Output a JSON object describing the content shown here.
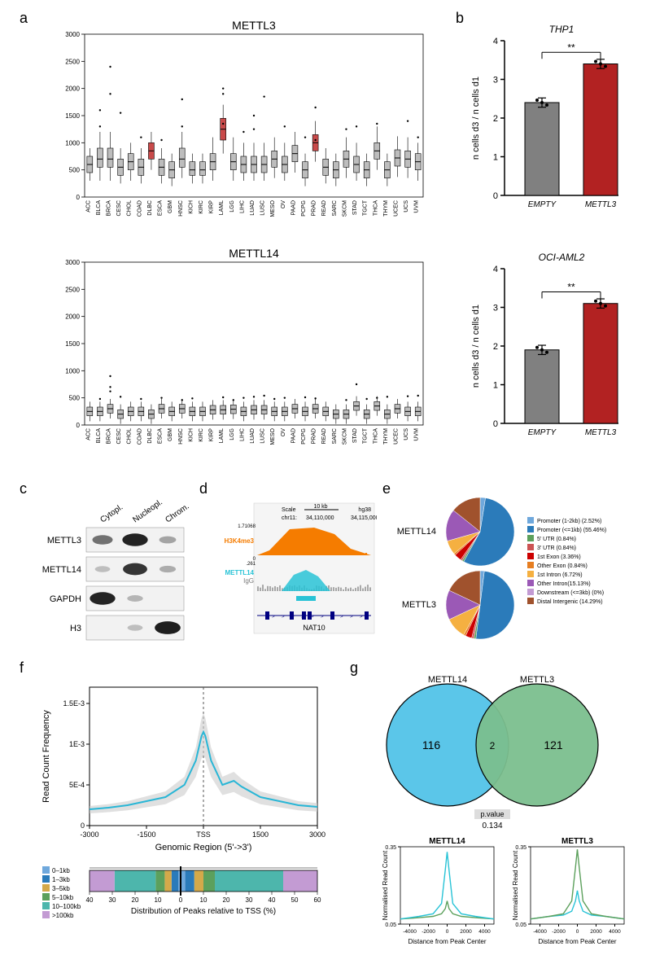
{
  "panel_labels": {
    "a": "a",
    "b": "b",
    "c": "c",
    "d": "d",
    "e": "e",
    "f": "f",
    "g": "g"
  },
  "panel_a": {
    "titles": [
      "METTL3",
      "METTL14"
    ],
    "categories": [
      "ACC",
      "BLCA",
      "BRCA",
      "CESC",
      "CHOL",
      "COAD",
      "DLBC",
      "ESCA",
      "GBM",
      "HNSC",
      "KICH",
      "KIRC",
      "KIRP",
      "LAML",
      "LGG",
      "LIHC",
      "LUAD",
      "LUSC",
      "MESO",
      "OV",
      "PAAD",
      "PCPG",
      "PRAD",
      "READ",
      "SARC",
      "SKCM",
      "STAD",
      "TGCT",
      "THCA",
      "THYM",
      "UCEC",
      "UCS",
      "UVM"
    ],
    "highlight_idx": [
      6,
      13,
      22
    ],
    "ylim": [
      0,
      3000
    ],
    "ytick_step": 500,
    "box_color": "#bdbdbd",
    "box_border": "#000000",
    "highlight_color": "#c94a4a",
    "mettl3_medians": [
      600,
      700,
      700,
      550,
      650,
      550,
      850,
      550,
      500,
      700,
      500,
      500,
      650,
      1250,
      650,
      600,
      600,
      600,
      700,
      600,
      800,
      500,
      1000,
      550,
      500,
      700,
      600,
      500,
      850,
      500,
      720,
      700,
      650
    ],
    "mettl3_q1": [
      450,
      550,
      550,
      400,
      500,
      400,
      700,
      400,
      350,
      550,
      400,
      400,
      500,
      1050,
      500,
      450,
      450,
      450,
      550,
      450,
      650,
      350,
      850,
      400,
      350,
      550,
      450,
      350,
      700,
      350,
      570,
      550,
      500
    ],
    "mettl3_q3": [
      750,
      900,
      900,
      700,
      800,
      700,
      1000,
      700,
      650,
      900,
      650,
      650,
      800,
      1450,
      800,
      750,
      750,
      750,
      850,
      750,
      950,
      650,
      1150,
      700,
      650,
      850,
      750,
      650,
      1000,
      650,
      870,
      850,
      800
    ],
    "mettl3_lw": [
      300,
      300,
      300,
      250,
      300,
      250,
      500,
      250,
      200,
      350,
      250,
      250,
      300,
      800,
      300,
      300,
      300,
      300,
      350,
      300,
      450,
      200,
      650,
      250,
      200,
      350,
      300,
      200,
      500,
      200,
      370,
      350,
      300
    ],
    "mettl3_uw": [
      900,
      1200,
      1200,
      900,
      1000,
      900,
      1200,
      900,
      800,
      1200,
      800,
      800,
      1100,
      1700,
      1100,
      1000,
      1000,
      1000,
      1100,
      1000,
      1200,
      800,
      1400,
      900,
      800,
      1100,
      1000,
      800,
      1300,
      800,
      1120,
      1100,
      1000
    ],
    "mettl14_medians": [
      250,
      250,
      300,
      200,
      250,
      250,
      200,
      300,
      250,
      300,
      250,
      250,
      280,
      280,
      290,
      250,
      280,
      280,
      250,
      250,
      300,
      250,
      300,
      250,
      200,
      200,
      350,
      200,
      350,
      200,
      300,
      250,
      250
    ],
    "outliers3_y": [
      1300,
      1600,
      1900,
      2400,
      1550,
      1100,
      1050,
      1300,
      1800,
      1900,
      1350,
      1200,
      1250,
      1500,
      1850,
      2000,
      1300,
      1100,
      1050,
      1650,
      1250,
      1300,
      1350,
      1400,
      1100
    ],
    "outliers3_x": [
      1,
      1,
      2,
      2,
      3,
      5,
      7,
      9,
      9,
      13,
      13,
      15,
      16,
      16,
      17,
      13,
      19,
      21,
      22,
      22,
      25,
      26,
      28,
      31,
      32
    ],
    "outliers14_y": [
      480,
      620,
      700,
      900,
      520,
      480,
      500,
      460,
      490,
      510,
      460,
      500,
      520,
      540,
      480,
      500,
      510,
      490,
      460,
      750,
      480,
      500,
      520,
      530,
      540
    ],
    "outliers14_x": [
      1,
      2,
      2,
      2,
      3,
      5,
      7,
      9,
      10,
      13,
      14,
      15,
      16,
      17,
      18,
      19,
      21,
      22,
      25,
      26,
      27,
      28,
      29,
      31,
      32
    ]
  },
  "panel_b": {
    "titles": [
      "THP1",
      "OCI-AML2"
    ],
    "ylabel": "n cells d3 / n cells d1",
    "xlabels": [
      "EMPTY",
      "METTL3"
    ],
    "sig": "**",
    "colors": {
      "empty": "#808080",
      "mettl3": "#b22222",
      "border": "#000000"
    },
    "ylim": [
      0,
      4
    ],
    "ytick_step": 1,
    "thp1_vals": [
      2.4,
      3.4
    ],
    "oci_vals": [
      1.9,
      3.1
    ],
    "err": 0.12
  },
  "panel_c": {
    "cols": [
      "Cytopl.",
      "Nucleopl.",
      "Chrom."
    ],
    "rows": [
      "METTL3",
      "METTL14",
      "GAPDH",
      "H3"
    ],
    "intensities": [
      [
        0.5,
        0.95,
        0.2
      ],
      [
        0.05,
        0.85,
        0.15
      ],
      [
        0.95,
        0.1,
        0.0
      ],
      [
        0.0,
        0.05,
        0.98
      ]
    ],
    "band_color": "#1a1a1a",
    "bg": "#f2f2f2",
    "border": "#888"
  },
  "panel_d": {
    "scale_label": "10 kb",
    "assembly": "hg38",
    "chrom": "chr11:",
    "ticks": [
      "34,110,000",
      "34,115,000"
    ],
    "y_top": "1.71068",
    "tracks": [
      {
        "label": "H3K4me3",
        "color": "#f57c00"
      },
      {
        "label_top": "METTL14",
        "label_bot": "IgG",
        "color_top": "#29c3d6",
        "color_bot": "#a8a8a8"
      }
    ],
    "gene": "NAT10",
    "gene_color": "#000080",
    "bg": "#f5f5f5"
  },
  "panel_e": {
    "labels": [
      "METTL14",
      "METTL3"
    ],
    "legend": [
      {
        "label": "Promoter (1-2kb) (2.52%)",
        "color": "#6fa8dc"
      },
      {
        "label": "Promoter (<=1kb) (55.46%)",
        "color": "#2b7bba"
      },
      {
        "label": "5' UTR (0.84%)",
        "color": "#5ca05c"
      },
      {
        "label": "3' UTR (0.84%)",
        "color": "#cc5454"
      },
      {
        "label": "1st Exon (3.36%)",
        "color": "#cc0000"
      },
      {
        "label": "Other Exon (0.84%)",
        "color": "#e67e22"
      },
      {
        "label": "1st Intron (6.72%)",
        "color": "#f5b041"
      },
      {
        "label": "Other Intron(15.13%)",
        "color": "#9b59b6"
      },
      {
        "label": "Downstream (<=3kb) (0%)",
        "color": "#c39bd3"
      },
      {
        "label": "Distal Intergenic (14.29%)",
        "color": "#a0522d"
      }
    ],
    "mettl14_slices": [
      2.52,
      55.46,
      0.84,
      0.84,
      3.36,
      0.84,
      6.72,
      15.13,
      0,
      14.29
    ],
    "mettl3_slices": [
      2.0,
      50.0,
      1.0,
      1.0,
      3.0,
      1.0,
      10.0,
      14.0,
      0,
      18.0
    ]
  },
  "panel_f": {
    "ylabel": "Read Count Frequency",
    "xlabel": "Genomic Region (5'->3')",
    "xticks": [
      "-3000",
      "-1500",
      "TSS",
      "1500",
      "3000"
    ],
    "xticks_vals": [
      -3000,
      -1500,
      0,
      1500,
      3000
    ],
    "yticks": [
      "0",
      "5E-4",
      "1E-3",
      "1.5E-3"
    ],
    "yticks_vals": [
      0,
      0.0005,
      0.001,
      0.0015
    ],
    "line_color": "#29b6d6",
    "shade_color": "#cccccc",
    "xlim": [
      -3000,
      3000
    ],
    "ylim": [
      0,
      0.0017
    ],
    "profile_x": [
      -3000,
      -2500,
      -2000,
      -1500,
      -1000,
      -500,
      -200,
      -50,
      0,
      50,
      200,
      500,
      800,
      1000,
      1500,
      2000,
      2500,
      3000
    ],
    "profile_y": [
      0.0002,
      0.00022,
      0.00025,
      0.0003,
      0.00035,
      0.0005,
      0.0008,
      0.0011,
      0.00115,
      0.0011,
      0.0008,
      0.0005,
      0.00055,
      0.00048,
      0.00035,
      0.0003,
      0.00025,
      0.00023
    ],
    "bar_label": "Distribution of Peaks relative to TSS (%)",
    "bar_ticks": [
      "40",
      "30",
      "20",
      "10",
      "0",
      "10",
      "20",
      "30",
      "40",
      "50",
      "60"
    ],
    "bar_legend": [
      {
        "label": "0–1kb",
        "color": "#6fa8dc"
      },
      {
        "label": "1–3kb",
        "color": "#2b7bba"
      },
      {
        "label": "3–5kb",
        "color": "#d4a94a"
      },
      {
        "label": "5–10kb",
        "color": "#5ca05c"
      },
      {
        "label": "10–100kb",
        "color": "#4db6ac"
      },
      {
        "label": ">100kb",
        "color": "#c39bd3"
      }
    ],
    "bar_left_pct": [
      1,
      3,
      3,
      4,
      18,
      11
    ],
    "bar_right_pct": [
      2,
      4,
      4,
      5,
      30,
      15
    ]
  },
  "panel_g": {
    "venn": {
      "left_label": "METTL14",
      "right_label": "METTL3",
      "left_n": 116,
      "right_n": 121,
      "overlap_n": 2,
      "left_color": "#52c3e8",
      "right_color": "#7bbf8e",
      "overlap_color": "#4a9e9a",
      "pval_label": "p.value",
      "pval": "0.134"
    },
    "mini": {
      "xlabel": "Distance from Peak Center",
      "ylabel": "Normalised Read Count",
      "xlim": [
        -5000,
        5000
      ],
      "xticks": [
        -4000,
        -2000,
        0,
        2000,
        4000
      ],
      "ylim": [
        0.05,
        0.35
      ],
      "yticks": [
        0.05,
        0.35
      ],
      "colors": {
        "mettl14": "#29c3d6",
        "mettl3": "#5ca05c"
      },
      "titles": [
        "METTL14",
        "METTL3"
      ],
      "profile_main": [
        -5000,
        -3000,
        -1500,
        -600,
        -200,
        0,
        200,
        600,
        1500,
        3000,
        5000
      ],
      "m14_main_y": [
        0.07,
        0.08,
        0.09,
        0.13,
        0.26,
        0.33,
        0.26,
        0.13,
        0.09,
        0.08,
        0.07
      ],
      "m14_other_y": [
        0.07,
        0.075,
        0.08,
        0.09,
        0.11,
        0.14,
        0.11,
        0.09,
        0.08,
        0.075,
        0.07
      ],
      "m3_main_y": [
        0.07,
        0.08,
        0.09,
        0.14,
        0.27,
        0.34,
        0.27,
        0.14,
        0.09,
        0.08,
        0.07
      ],
      "m3_other_y": [
        0.07,
        0.08,
        0.085,
        0.1,
        0.14,
        0.18,
        0.14,
        0.1,
        0.085,
        0.08,
        0.07
      ]
    }
  }
}
